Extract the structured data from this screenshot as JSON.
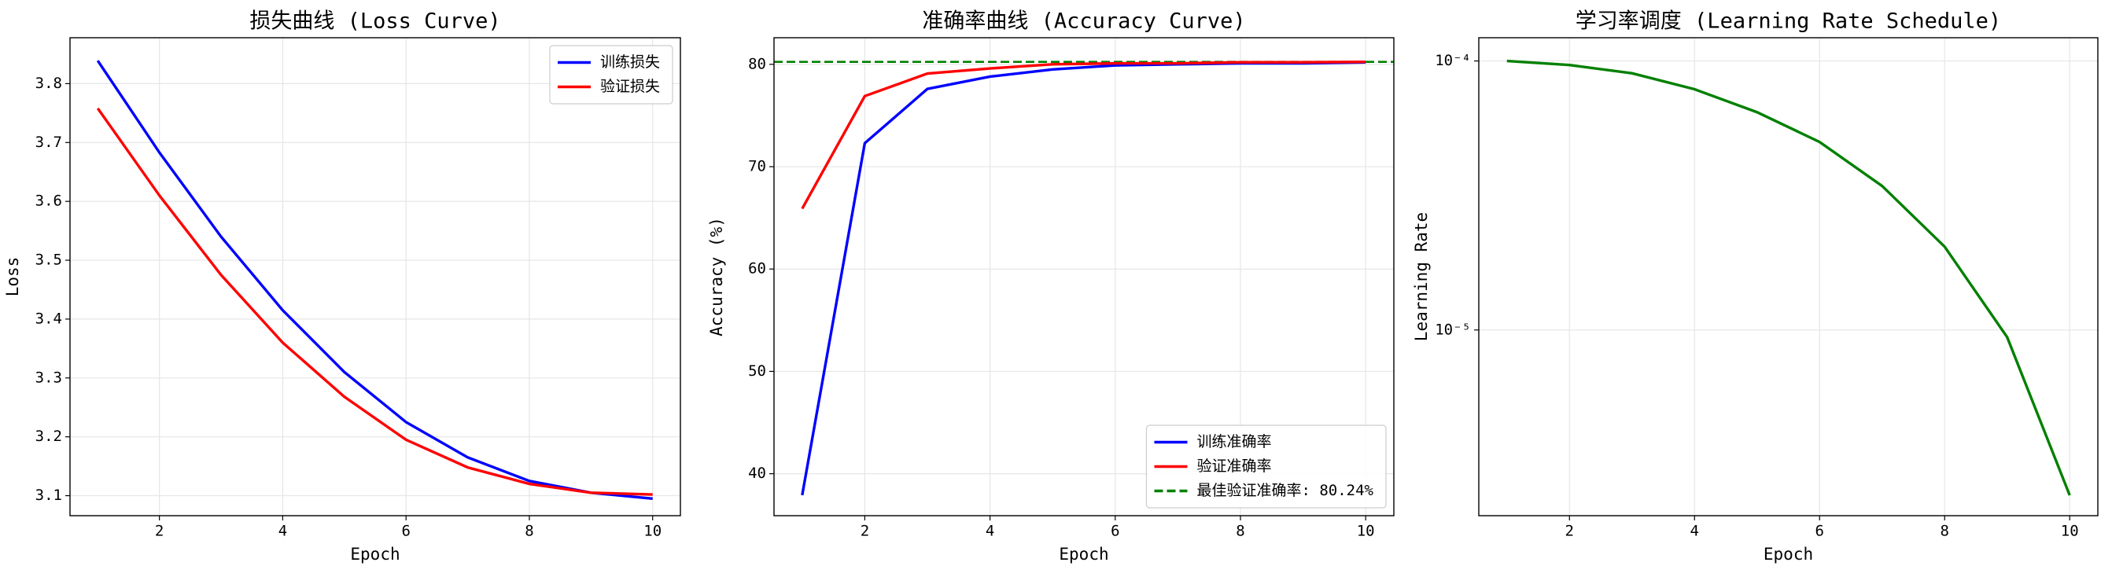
{
  "chart_data": [
    {
      "type": "line",
      "title": "损失曲线 (Loss Curve)",
      "xlabel": "Epoch",
      "ylabel": "Loss",
      "x": [
        1,
        2,
        3,
        4,
        5,
        6,
        7,
        8,
        9,
        10
      ],
      "series": [
        {
          "name": "训练损失",
          "color": "#0000ff",
          "values": [
            3.839,
            3.683,
            3.54,
            3.415,
            3.31,
            3.225,
            3.165,
            3.125,
            3.105,
            3.095
          ]
        },
        {
          "name": "验证损失",
          "color": "#ff0000",
          "values": [
            3.758,
            3.61,
            3.475,
            3.36,
            3.268,
            3.195,
            3.148,
            3.12,
            3.105,
            3.102
          ]
        }
      ],
      "xlim": [
        0.55,
        10.45
      ],
      "xticks": [
        2,
        4,
        6,
        8,
        10
      ],
      "ylim": [
        3.066,
        3.878
      ],
      "yticks": [
        3.1,
        3.2,
        3.3,
        3.4,
        3.5,
        3.6,
        3.7,
        3.8
      ],
      "grid": true,
      "legend": "upper right"
    },
    {
      "type": "line",
      "title": "准确率曲线 (Accuracy Curve)",
      "xlabel": "Epoch",
      "ylabel": "Accuracy (%)",
      "x": [
        1,
        2,
        3,
        4,
        5,
        6,
        7,
        8,
        9,
        10
      ],
      "series": [
        {
          "name": "训练准确率",
          "color": "#0000ff",
          "values": [
            37.9,
            72.3,
            77.6,
            78.8,
            79.5,
            79.9,
            80.0,
            80.1,
            80.1,
            80.2
          ]
        },
        {
          "name": "验证准确率",
          "color": "#ff0000",
          "values": [
            65.9,
            76.9,
            79.1,
            79.6,
            80.0,
            80.1,
            80.1,
            80.2,
            80.2,
            80.24
          ]
        }
      ],
      "reference_line": {
        "name": "最佳验证准确率: 80.24%",
        "value": 80.24,
        "color": "#008000",
        "style": "dashed"
      },
      "xlim": [
        0.55,
        10.45
      ],
      "xticks": [
        2,
        4,
        6,
        8,
        10
      ],
      "ylim": [
        35.9,
        82.6
      ],
      "yticks": [
        40,
        50,
        60,
        70,
        80
      ],
      "grid": true,
      "legend": "lower right"
    },
    {
      "type": "line",
      "title": "学习率调度 (Learning Rate Schedule)",
      "xlabel": "Epoch",
      "ylabel": "Learning Rate",
      "x": [
        1,
        2,
        3,
        4,
        5,
        6,
        7,
        8,
        9,
        10
      ],
      "series": [
        {
          "color": "#008000",
          "values": [
            0.0001,
            9.66e-05,
            9e-05,
            7.85e-05,
            6.45e-05,
            5e-05,
            3.43e-05,
            2.04e-05,
            9.4e-06,
            2.43e-06
          ]
        }
      ],
      "xlim": [
        0.55,
        10.45
      ],
      "xticks": [
        2,
        4,
        6,
        8,
        10
      ],
      "ylim": [
        2.04e-06,
        0.000122
      ],
      "yticks": [
        {
          "value": 0.0001,
          "label": "10⁻⁴"
        },
        {
          "value": 1e-05,
          "label": "10⁻⁵"
        }
      ],
      "log_y": true,
      "grid": true
    }
  ]
}
